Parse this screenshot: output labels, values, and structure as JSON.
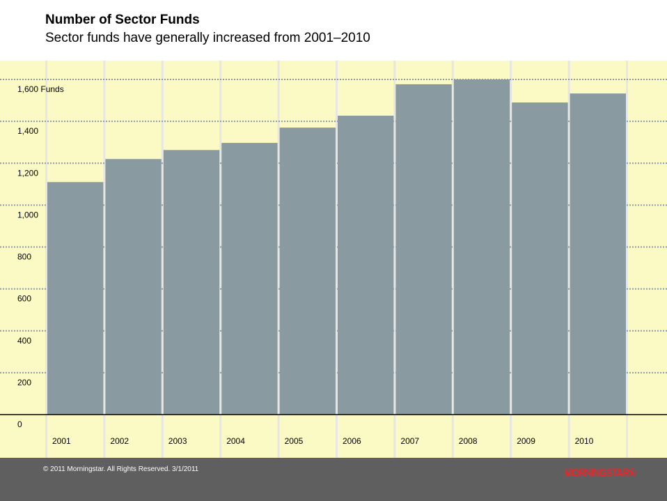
{
  "chart_data": {
    "type": "bar",
    "title": "Number of Sector Funds",
    "subtitle": "Sector funds have generally increased from 2001–2010",
    "categories": [
      "2001",
      "2002",
      "2003",
      "2004",
      "2005",
      "2006",
      "2007",
      "2008",
      "2009",
      "2010"
    ],
    "values": [
      1110,
      1220,
      1263,
      1297,
      1370,
      1427,
      1577,
      1600,
      1490,
      1533
    ],
    "ylim": [
      0,
      1600
    ],
    "yticks": [
      0,
      200,
      400,
      600,
      800,
      1000,
      1200,
      1400,
      1600
    ],
    "ytick_labels": [
      "0",
      "200",
      "400",
      "600",
      "800",
      "1,000",
      "1,200",
      "1,400",
      "1,600 Funds"
    ],
    "xlabel": "",
    "ylabel": "Funds",
    "grid": true,
    "colors": {
      "bar": "#899ba0",
      "background": "#fbfac4",
      "grid": "#8a9aa6"
    }
  },
  "footer": {
    "copyright": "© 2011 Morningstar. All Rights Reserved. 3/1/2011",
    "logo": "MORNINGSTAR®"
  }
}
